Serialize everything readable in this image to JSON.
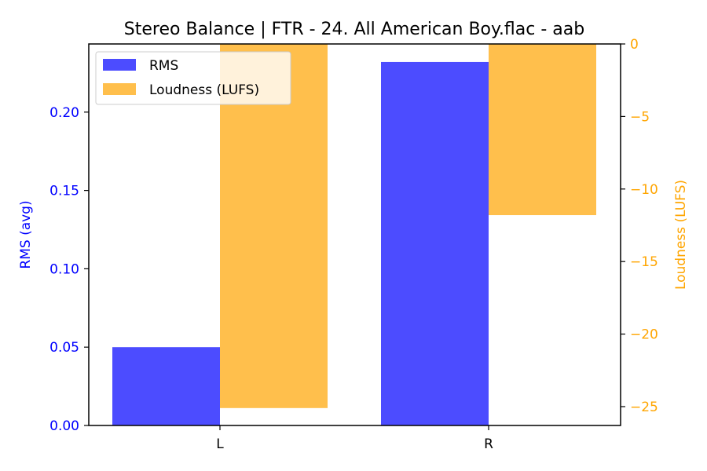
{
  "chart_data": {
    "type": "bar",
    "title": "Stereo Balance | FTR - 24. All American Boy.flac - aab",
    "categories": [
      "L",
      "R"
    ],
    "series": [
      {
        "name": "RMS",
        "axis": "left",
        "values": [
          0.05,
          0.232
        ],
        "color": "#4c4cff"
      },
      {
        "name": "Loudness (LUFS)",
        "axis": "right",
        "values": [
          -25.1,
          -11.8
        ],
        "color": "#ffbf4c"
      }
    ],
    "ylabel_left": "RMS (avg)",
    "ylabel_right": "Loudness (LUFS)",
    "ylim_left": [
      0,
      0.2435
    ],
    "ylim_right": [
      -26.3,
      0
    ],
    "yticks_left": [
      "0.00",
      "0.05",
      "0.10",
      "0.15",
      "0.20"
    ],
    "yticks_right": [
      "0",
      "−5",
      "−10",
      "−15",
      "−20",
      "−25"
    ],
    "left_axis_color": "#0000ff",
    "right_axis_color": "#ffa500",
    "legend_position": "top-left",
    "grid": false
  }
}
